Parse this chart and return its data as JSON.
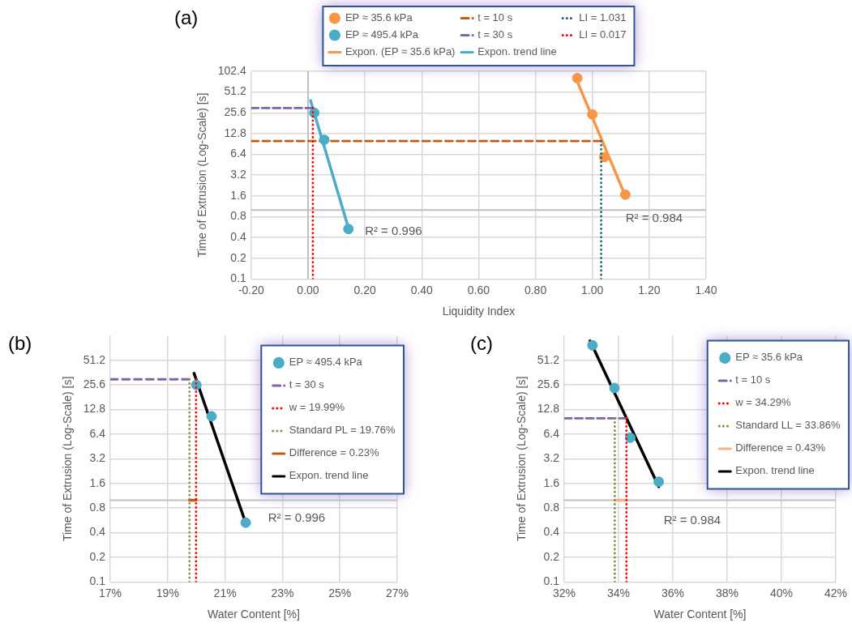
{
  "chart_data": [
    {
      "type": "scatter",
      "title": "(a)",
      "xlabel": "Liquidity Index",
      "ylabel": "Time of Extrusion (Log-Scale) [s]",
      "log": "y",
      "grid": true,
      "legend": "top",
      "xlim": [
        -0.2,
        1.4
      ],
      "xticks": [
        {
          "value": -0.2,
          "label": "-0.20"
        },
        {
          "value": 0,
          "label": "0.00"
        },
        {
          "value": 0.2,
          "label": "0.20"
        },
        {
          "value": 0.4,
          "label": "0.40"
        },
        {
          "value": 0.6,
          "label": "0.60"
        },
        {
          "value": 0.8,
          "label": "0.80"
        },
        {
          "value": 1,
          "label": "1.00"
        },
        {
          "value": 1.2,
          "label": "1.20"
        },
        {
          "value": 1.4,
          "label": "1.40"
        }
      ],
      "ylim": [
        0.1,
        102.4
      ],
      "yticks": [
        0.1,
        0.2,
        0.4,
        0.8,
        1.6,
        3.2,
        6.4,
        12.8,
        25.6,
        51.2,
        102.4
      ],
      "ref_lines": [
        {
          "axis": "y",
          "value": 1,
          "color": "#bfbfbf"
        },
        {
          "axis": "x",
          "value": 0,
          "color": "#bfbfbf"
        }
      ],
      "annotations": [
        "R² = 0.996",
        "R² = 0.984"
      ],
      "series": [
        {
          "name": "EP ≈ 35.6 kPa",
          "marker": "circle",
          "color": "#f79646",
          "x": [
            0.947,
            1.0,
            1.042,
            1.116
          ],
          "values": [
            81.5,
            24.2,
            5.85,
            1.67
          ]
        },
        {
          "name": "EP ≈ 495.4 kPa",
          "marker": "circle",
          "color": "#4bacc6",
          "x": [
            0.022,
            0.057,
            0.142
          ],
          "values": [
            25.6,
            10.4,
            0.53
          ]
        },
        {
          "name": "Expon. (EP ≈ 35.6 kPa)",
          "type": "line",
          "line_style": "solid",
          "color": "#f79646",
          "x": [
            0.943,
            1.116
          ],
          "values": [
            80,
            1.6
          ]
        },
        {
          "name": "t = 10 s",
          "type": "line",
          "line_style": "dashed",
          "color": "#c55a11",
          "x": [
            -0.2,
            1.031
          ],
          "values": [
            10,
            10
          ]
        },
        {
          "name": "t = 30 s",
          "type": "line",
          "line_style": "dashed",
          "color": "#8064a2",
          "x": [
            -0.2,
            0.017
          ],
          "values": [
            30,
            30
          ]
        },
        {
          "name": "Expon. trend line",
          "type": "line",
          "line_style": "solid",
          "color": "#4bacc6",
          "x": [
            0.009,
            0.142
          ],
          "values": [
            38.4,
            0.55
          ]
        },
        {
          "name": "LI = 1.031",
          "type": "line",
          "line_style": "dotted",
          "color": "#1f6477",
          "x": [
            1.031,
            1.031
          ],
          "values": [
            10,
            0.1
          ]
        },
        {
          "name": "LI = 0.017",
          "type": "line",
          "line_style": "dotted",
          "color": "#ff0000",
          "x": [
            0.017,
            0.017
          ],
          "values": [
            30,
            0.1
          ]
        }
      ]
    },
    {
      "type": "scatter",
      "title": "(b)",
      "xlabel": "Water Content [%]",
      "ylabel": "Time of Extrusion (Log-Scale) [s]",
      "log": "y",
      "grid": true,
      "legend": "top right",
      "xlim": [
        17,
        27
      ],
      "xticks": [
        {
          "value": 17,
          "label": "17%"
        },
        {
          "value": 19,
          "label": "19%"
        },
        {
          "value": 21,
          "label": "21%"
        },
        {
          "value": 23,
          "label": "23%"
        },
        {
          "value": 25,
          "label": "25%"
        },
        {
          "value": 27,
          "label": "27%"
        }
      ],
      "ylim": [
        0.1,
        102.4
      ],
      "yticks": [
        0.1,
        0.2,
        0.4,
        0.8,
        1.6,
        3.2,
        6.4,
        12.8,
        25.6,
        51.2
      ],
      "ref_lines": [
        {
          "axis": "y",
          "value": 1,
          "color": "#bfbfbf"
        }
      ],
      "annotations": [
        "R² = 0.996"
      ],
      "series": [
        {
          "name": "EP ≈ 495.4 kPa",
          "marker": "circle",
          "color": "#4bacc6",
          "x": [
            20.0,
            20.53,
            21.72
          ],
          "values": [
            25.6,
            10.6,
            0.53
          ]
        },
        {
          "name": "t = 30 s",
          "type": "line",
          "line_style": "dashed",
          "color": "#8064a2",
          "x": [
            17,
            19.76
          ],
          "values": [
            30,
            30
          ]
        },
        {
          "name": "w = 19.99%",
          "type": "line",
          "line_style": "dotted",
          "color": "#ff0000",
          "x": [
            19.99,
            19.99
          ],
          "values": [
            30,
            0.1
          ]
        },
        {
          "name": "Standard PL = 19.76%",
          "type": "line",
          "line_style": "dotted",
          "color": "#948a54",
          "x": [
            19.76,
            19.76
          ],
          "values": [
            30,
            0.1
          ]
        },
        {
          "name": "Difference = 0.23%",
          "type": "line",
          "line_style": "solid",
          "color": "#c55a11",
          "x": [
            19.76,
            19.99
          ],
          "values": [
            1,
            1
          ]
        },
        {
          "name": "Expon. trend line",
          "type": "line",
          "line_style": "solid",
          "color": "#000000",
          "x": [
            19.92,
            21.7
          ],
          "values": [
            35.5,
            0.55
          ]
        }
      ]
    },
    {
      "type": "scatter",
      "title": "(c)",
      "xlabel": "Water Content [%]",
      "ylabel": "Time of Extrusion (Log-Scale) [s]",
      "log": "y",
      "grid": true,
      "legend": "top right",
      "xlim": [
        32,
        42
      ],
      "xticks": [
        {
          "value": 32,
          "label": "32%"
        },
        {
          "value": 34,
          "label": "34%"
        },
        {
          "value": 36,
          "label": "36%"
        },
        {
          "value": 38,
          "label": "38%"
        },
        {
          "value": 40,
          "label": "40%"
        },
        {
          "value": 42,
          "label": "42%"
        }
      ],
      "ylim": [
        0.1,
        102.4
      ],
      "yticks": [
        0.1,
        0.2,
        0.4,
        0.8,
        1.6,
        3.2,
        6.4,
        12.8,
        25.6,
        51.2
      ],
      "ref_lines": [
        {
          "axis": "y",
          "value": 1,
          "color": "#bfbfbf"
        }
      ],
      "annotations": [
        "R² = 0.984"
      ],
      "series": [
        {
          "name": "EP ≈ 35.6 kPa",
          "marker": "circle",
          "color": "#4bacc6",
          "x": [
            33.04,
            33.85,
            34.43,
            35.48
          ],
          "values": [
            78,
            23.5,
            5.8,
            1.68
          ]
        },
        {
          "name": "t = 10 s",
          "type": "line",
          "line_style": "dashed",
          "color": "#8064a2",
          "x": [
            32,
            34.29
          ],
          "values": [
            10,
            10
          ]
        },
        {
          "name": "w = 34.29%",
          "type": "line",
          "line_style": "dotted",
          "color": "#ff0000",
          "x": [
            34.29,
            34.29
          ],
          "values": [
            10,
            0.1
          ]
        },
        {
          "name": "Standard LL = 33.86%",
          "type": "line",
          "line_style": "dotted",
          "color": "#77933c",
          "x": [
            33.86,
            33.86
          ],
          "values": [
            10,
            0.1
          ]
        },
        {
          "name": "Difference = 0.43%",
          "type": "line",
          "line_style": "solid",
          "color": "#f4b183",
          "x": [
            33.86,
            34.29
          ],
          "values": [
            1,
            1
          ]
        },
        {
          "name": "Expon. trend line",
          "type": "line",
          "line_style": "solid",
          "color": "#000000",
          "x": [
            32.95,
            35.48
          ],
          "values": [
            88.6,
            1.46
          ]
        }
      ]
    }
  ]
}
